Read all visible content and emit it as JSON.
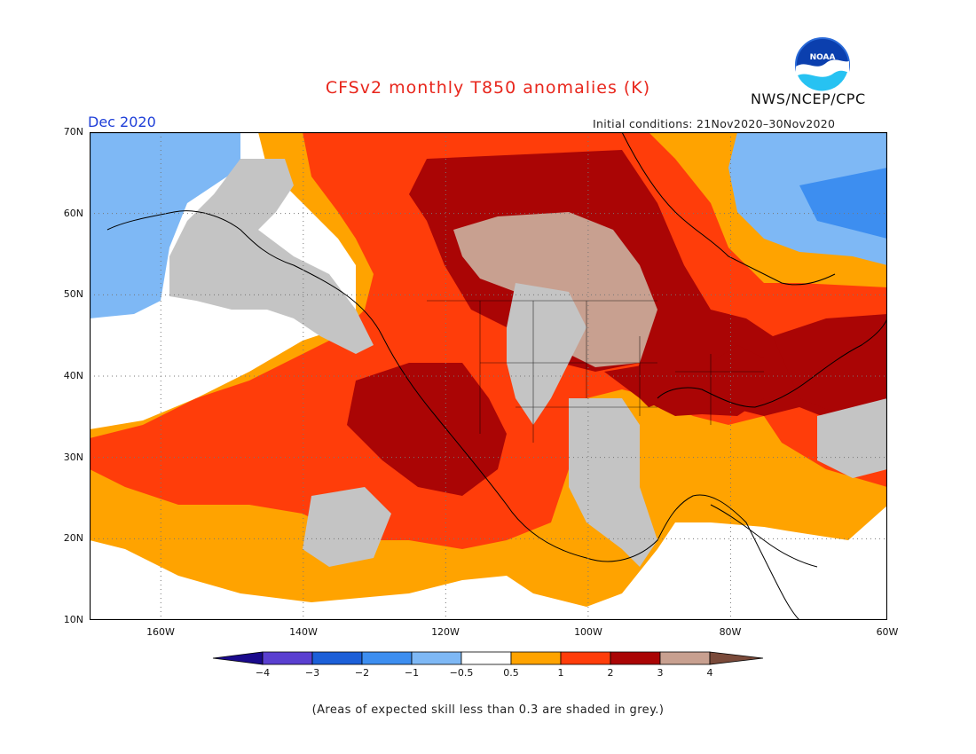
{
  "title": "CFSv2 monthly T850 anomalies (K)",
  "agency": "NWS/NCEP/CPC",
  "logo_text": "NOAA",
  "valid_month": "Dec 2020",
  "initial_conditions": "Initial conditions: 21Nov2020–30Nov2020",
  "footnote": "(Areas of expected skill less than 0.3 are shaded in grey.)",
  "map": {
    "lon_range": [
      -172,
      -60
    ],
    "lat_range": [
      10,
      70
    ],
    "lat_labels": [
      "70N",
      "60N",
      "50N",
      "40N",
      "30N",
      "20N",
      "10N"
    ],
    "lon_labels": [
      "160W",
      "140W",
      "120W",
      "100W",
      "80W",
      "60W"
    ],
    "skill_mask_color": "#c4c4c4"
  },
  "colorbar": {
    "labels": [
      "−4",
      "−3",
      "−2",
      "−1",
      "−0.5",
      "0.5",
      "1",
      "2",
      "3",
      "4"
    ],
    "colors": [
      "#1a0a8c",
      "#5a3fd0",
      "#1c5fd8",
      "#3d8ef0",
      "#7eb8f5",
      "#ffffff",
      "#ffa300",
      "#ff3d0a",
      "#aa0505",
      "#c8a090",
      "#7a4a3a"
    ]
  }
}
